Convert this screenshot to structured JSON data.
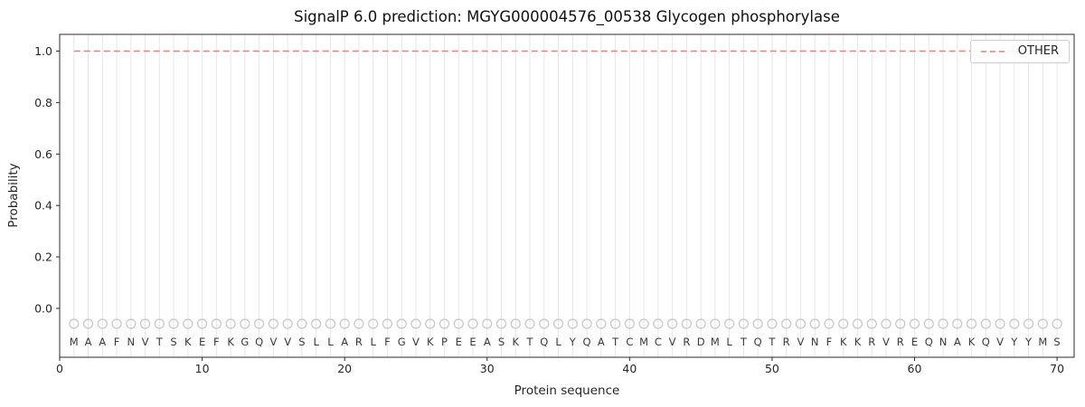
{
  "chart_data": {
    "type": "line",
    "title": "SignalP 6.0 prediction: MGYG000004576_00538 Glycogen phosphorylase",
    "xlabel": "Protein sequence",
    "ylabel": "Probability",
    "xlim": [
      0,
      71.2
    ],
    "ylim": [
      -0.19,
      1.065
    ],
    "xticks": [
      0,
      10,
      20,
      30,
      40,
      50,
      60,
      70
    ],
    "yticks": [
      0.0,
      0.2,
      0.4,
      0.6,
      0.8,
      1.0
    ],
    "grid": {
      "vertical_per_residue": true,
      "horizontal": false,
      "color": "#e7e7e7"
    },
    "legend": {
      "position": "upper right",
      "entries": [
        {
          "label": "OTHER",
          "color": "#e87e7f",
          "linestyle": "dashed"
        }
      ]
    },
    "sequence": "MAAFNVTSKEFKGQVVSLLARLFGVKPEEASKTQLYQATCMCVRDMLTQTRVNFKKRVREQNAKQVYYMS",
    "positions": {
      "start": 1,
      "end": 70
    },
    "series": [
      {
        "name": "OTHER",
        "color": "#e87e7f",
        "linestyle": "dashed",
        "x_start": 1,
        "x_end": 70,
        "y_constant": 1.0
      }
    ],
    "residue_markers": {
      "shape": "open-circle",
      "color": "#c6c6c6",
      "y": -0.06
    },
    "residue_letter_y": -0.145,
    "colors": {
      "spine": "#2b2b2b",
      "tick_label": "#262626",
      "letter": "#3a3a3a"
    }
  }
}
